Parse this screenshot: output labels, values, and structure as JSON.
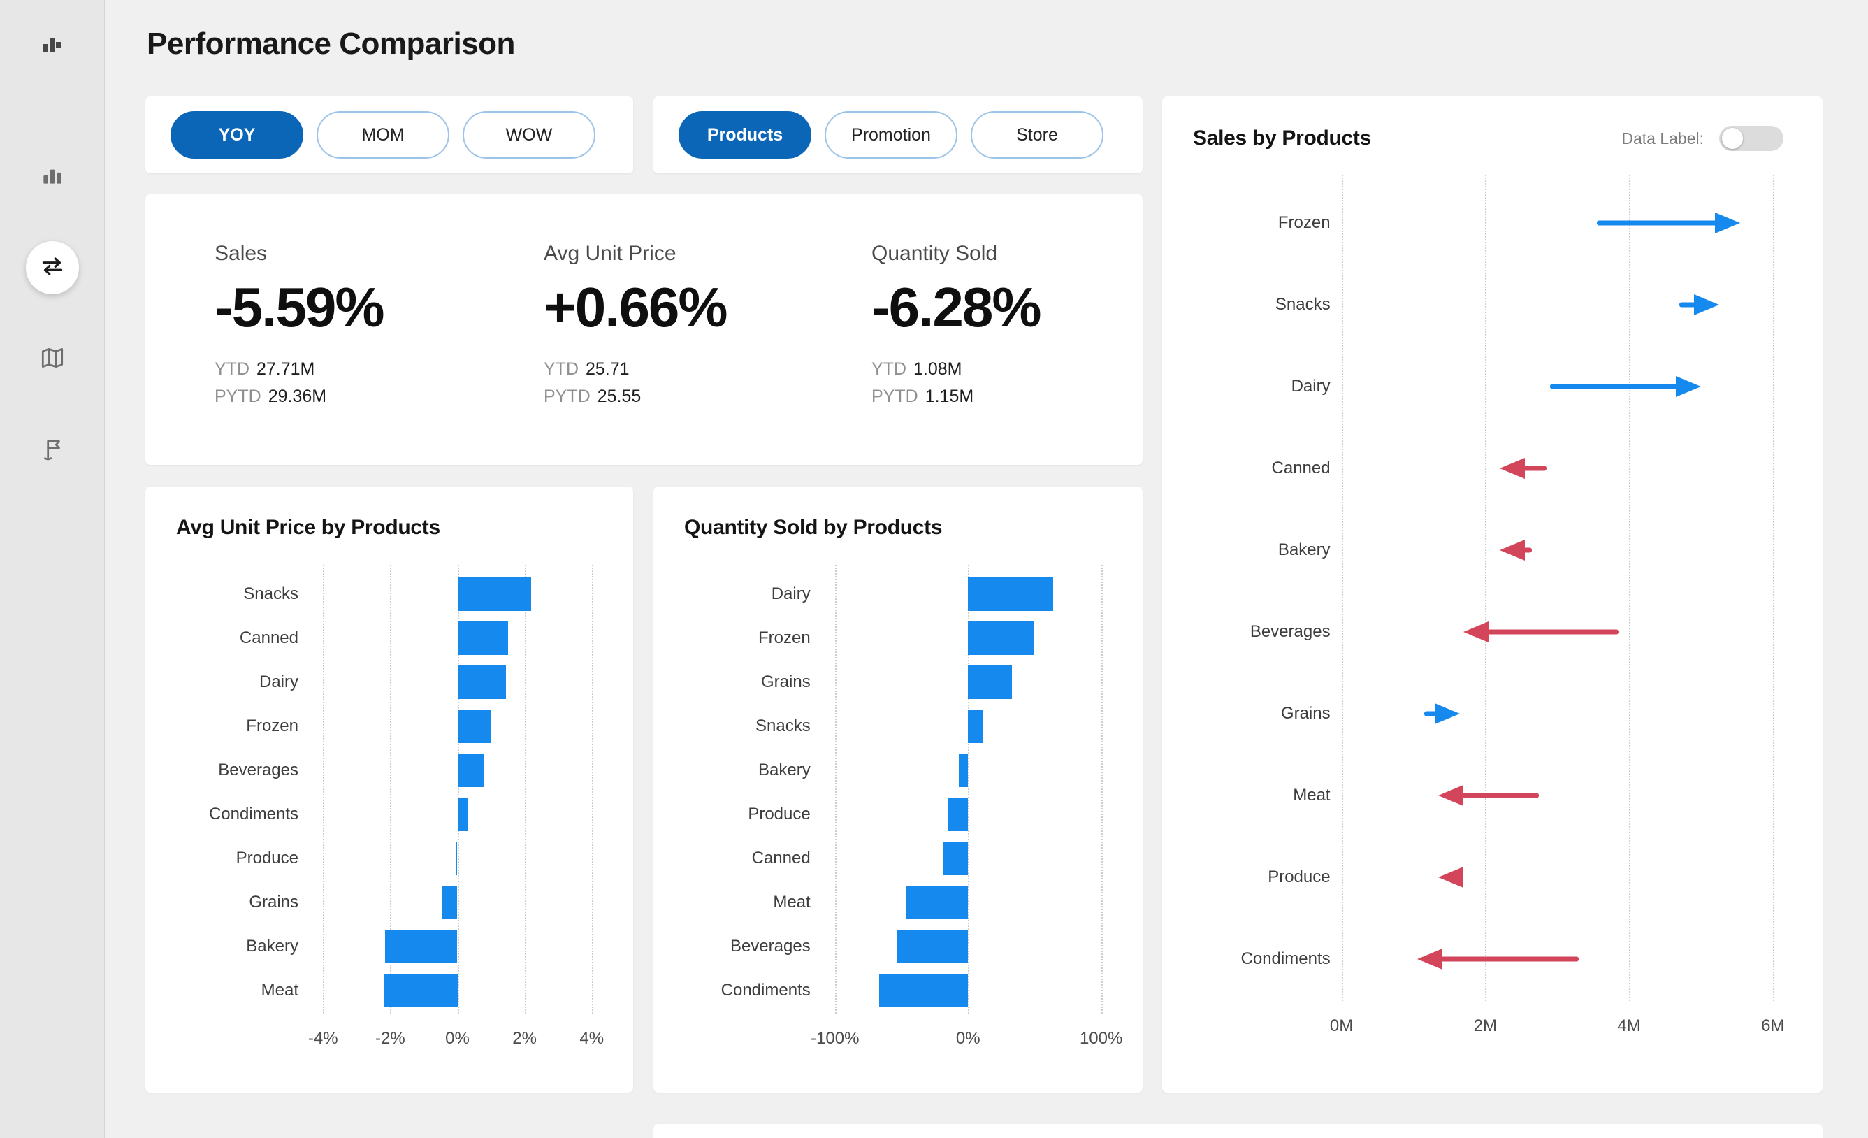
{
  "colors": {
    "page_bg": "#f0f0f0",
    "sidebar_bg": "#e7e7e7",
    "card_bg": "#ffffff",
    "pill_selected_bg": "#0b66b8",
    "pill_border": "#9cc3e8",
    "bar_blue": "#1589ee",
    "arrow_blue": "#1589ee",
    "arrow_red": "#d3455b"
  },
  "sidebar": {
    "logo": "bar-chart-logo",
    "items": [
      {
        "name": "column-chart",
        "active": false
      },
      {
        "name": "swap-arrows",
        "active": true
      },
      {
        "name": "map",
        "active": false
      },
      {
        "name": "flag",
        "active": false
      }
    ]
  },
  "header": {
    "title": "Performance Comparison"
  },
  "filters": {
    "period": {
      "options": [
        {
          "label": "YOY",
          "selected": true
        },
        {
          "label": "MOM",
          "selected": false
        },
        {
          "label": "WOW",
          "selected": false
        }
      ]
    },
    "dimension": {
      "options": [
        {
          "label": "Products",
          "selected": true
        },
        {
          "label": "Promotion",
          "selected": false
        },
        {
          "label": "Store",
          "selected": false
        }
      ]
    }
  },
  "kpis": [
    {
      "label": "Sales",
      "value": "-5.59%",
      "ytd_label": "YTD",
      "ytd_value": "27.71M",
      "pytd_label": "PYTD",
      "pytd_value": "29.36M"
    },
    {
      "label": "Avg Unit Price",
      "value": "+0.66%",
      "ytd_label": "YTD",
      "ytd_value": "25.71",
      "pytd_label": "PYTD",
      "pytd_value": "25.55"
    },
    {
      "label": "Quantity Sold",
      "value": "-6.28%",
      "ytd_label": "YTD",
      "ytd_value": "1.08M",
      "pytd_label": "PYTD",
      "pytd_value": "1.15M"
    }
  ],
  "data_label_toggle": {
    "label": "Data Label:",
    "state": "off"
  },
  "chart_data": [
    {
      "type": "bar",
      "orientation": "horizontal",
      "title": "Avg Unit Price by Products",
      "categories": [
        "Snacks",
        "Canned",
        "Dairy",
        "Frozen",
        "Beverages",
        "Condiments",
        "Produce",
        "Grains",
        "Bakery",
        "Meat"
      ],
      "values": [
        2.2,
        1.5,
        1.45,
        1.0,
        0.8,
        0.3,
        -0.05,
        -0.45,
        -2.15,
        -2.2
      ],
      "unit": "%",
      "xlim": [
        -4.4,
        4.4
      ],
      "ticks": [
        {
          "v": -4,
          "label": "-4%"
        },
        {
          "v": -2,
          "label": "-2%"
        },
        {
          "v": 0,
          "label": "0%"
        },
        {
          "v": 2,
          "label": "2%"
        },
        {
          "v": 4,
          "label": "4%"
        }
      ],
      "grid": "dotted-vertical",
      "bar_color": "#1589ee"
    },
    {
      "type": "bar",
      "orientation": "horizontal",
      "title": "Quantity Sold by Products",
      "categories": [
        "Dairy",
        "Frozen",
        "Grains",
        "Snacks",
        "Bakery",
        "Produce",
        "Canned",
        "Meat",
        "Beverages",
        "Condiments"
      ],
      "values": [
        64,
        50,
        33,
        11,
        -7,
        -15,
        -19,
        -47,
        -53,
        -67
      ],
      "unit": "%",
      "xlim": [
        -110,
        110
      ],
      "ticks": [
        {
          "v": -100,
          "label": "-100%"
        },
        {
          "v": 0,
          "label": "0%"
        },
        {
          "v": 100,
          "label": "100%"
        }
      ],
      "grid": "dotted-vertical",
      "bar_color": "#1589ee"
    },
    {
      "type": "arrow",
      "title": "Sales by Products",
      "categories": [
        "Frozen",
        "Snacks",
        "Dairy",
        "Canned",
        "Bakery",
        "Beverages",
        "Grains",
        "Meat",
        "Produce",
        "Condiments"
      ],
      "series": [
        {
          "name": "start",
          "values": [
            3.55,
            4.7,
            2.9,
            2.85,
            2.65,
            3.85,
            1.15,
            2.75,
            1.7,
            3.3
          ]
        },
        {
          "name": "end",
          "values": [
            5.55,
            5.25,
            5.0,
            2.2,
            2.2,
            1.7,
            1.65,
            1.35,
            1.35,
            1.05
          ]
        }
      ],
      "unit": "M",
      "xlim": [
        0,
        6.3
      ],
      "ticks": [
        {
          "v": 0,
          "label": "0M"
        },
        {
          "v": 2,
          "label": "2M"
        },
        {
          "v": 4,
          "label": "4M"
        },
        {
          "v": 6,
          "label": "6M"
        }
      ],
      "grid": "dotted-vertical",
      "increase_color": "#1589ee",
      "decrease_color": "#d3455b"
    }
  ]
}
